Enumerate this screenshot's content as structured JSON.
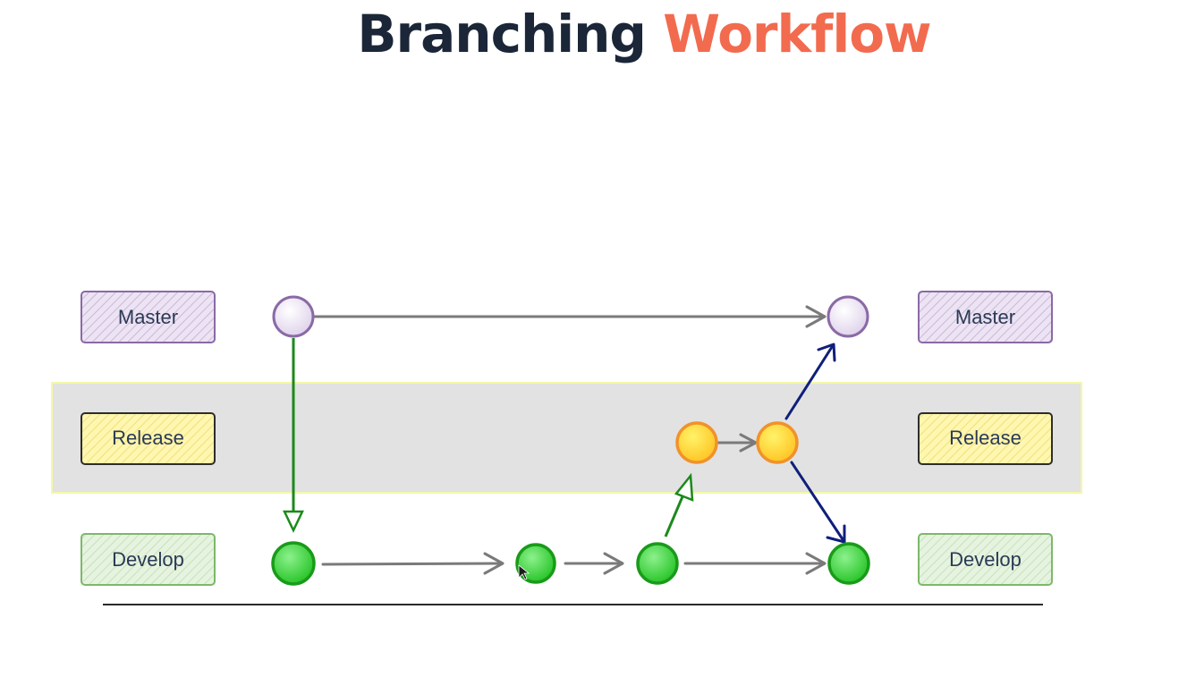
{
  "title": {
    "part1": "Branching",
    "part2": "Workflow"
  },
  "colors": {
    "title_dark": "#1b2638",
    "title_accent": "#f26b4f",
    "master_fill": "#e6dcee",
    "master_stroke": "#8a6aa6",
    "release_fill": "#fff4a3",
    "release_node": "#ffd23a",
    "release_stroke": "#f0922b",
    "develop_fill": "#e0f1d8",
    "develop_node": "#3fd33f",
    "develop_stroke": "#199b19",
    "release_band": "#e2e2e2",
    "arrow_gray": "#7a7a7a",
    "arrow_green": "#1b8a1b",
    "arrow_navy": "#0f1f7a"
  },
  "labels": {
    "master_left": "Master",
    "release_left": "Release",
    "develop_left": "Develop",
    "master_right": "Master",
    "release_right": "Release",
    "develop_right": "Develop"
  }
}
